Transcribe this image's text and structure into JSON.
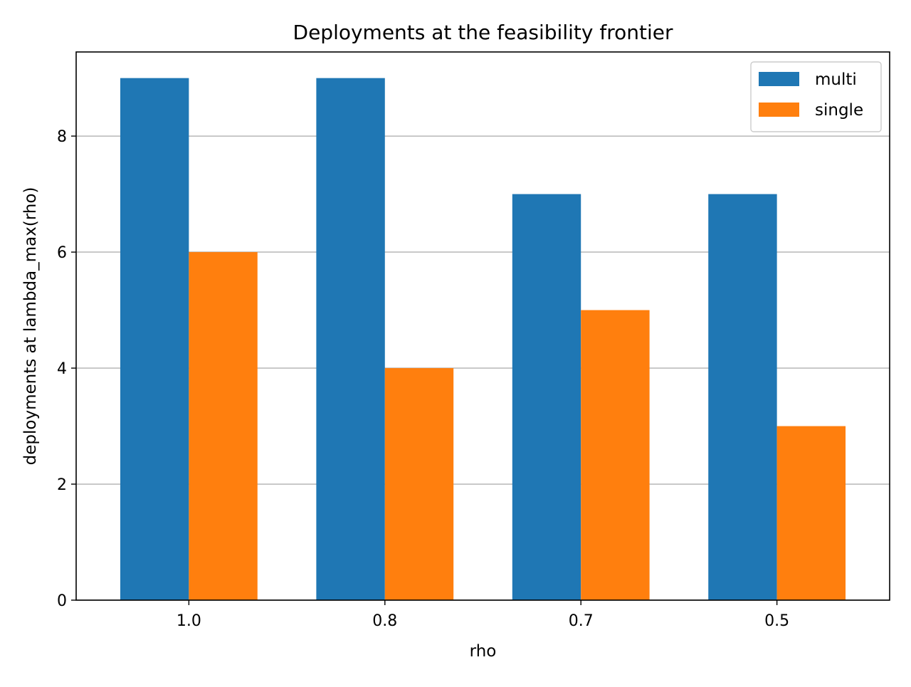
{
  "chart_data": {
    "type": "bar",
    "title": "Deployments at the feasibility frontier",
    "xlabel": "rho",
    "ylabel": "deployments at lambda_max(rho)",
    "categories": [
      "1.0",
      "0.8",
      "0.7",
      "0.5"
    ],
    "series": [
      {
        "name": "multi",
        "color": "#1f77b4",
        "values": [
          9,
          9,
          7,
          7
        ]
      },
      {
        "name": "single",
        "color": "#ff7f0e",
        "values": [
          6,
          4,
          5,
          3
        ]
      }
    ],
    "ylim": [
      0,
      9.45
    ],
    "yticks": [
      0,
      2,
      4,
      6,
      8
    ],
    "grid": {
      "y": true,
      "x": false
    },
    "legend_position": "top-right"
  }
}
